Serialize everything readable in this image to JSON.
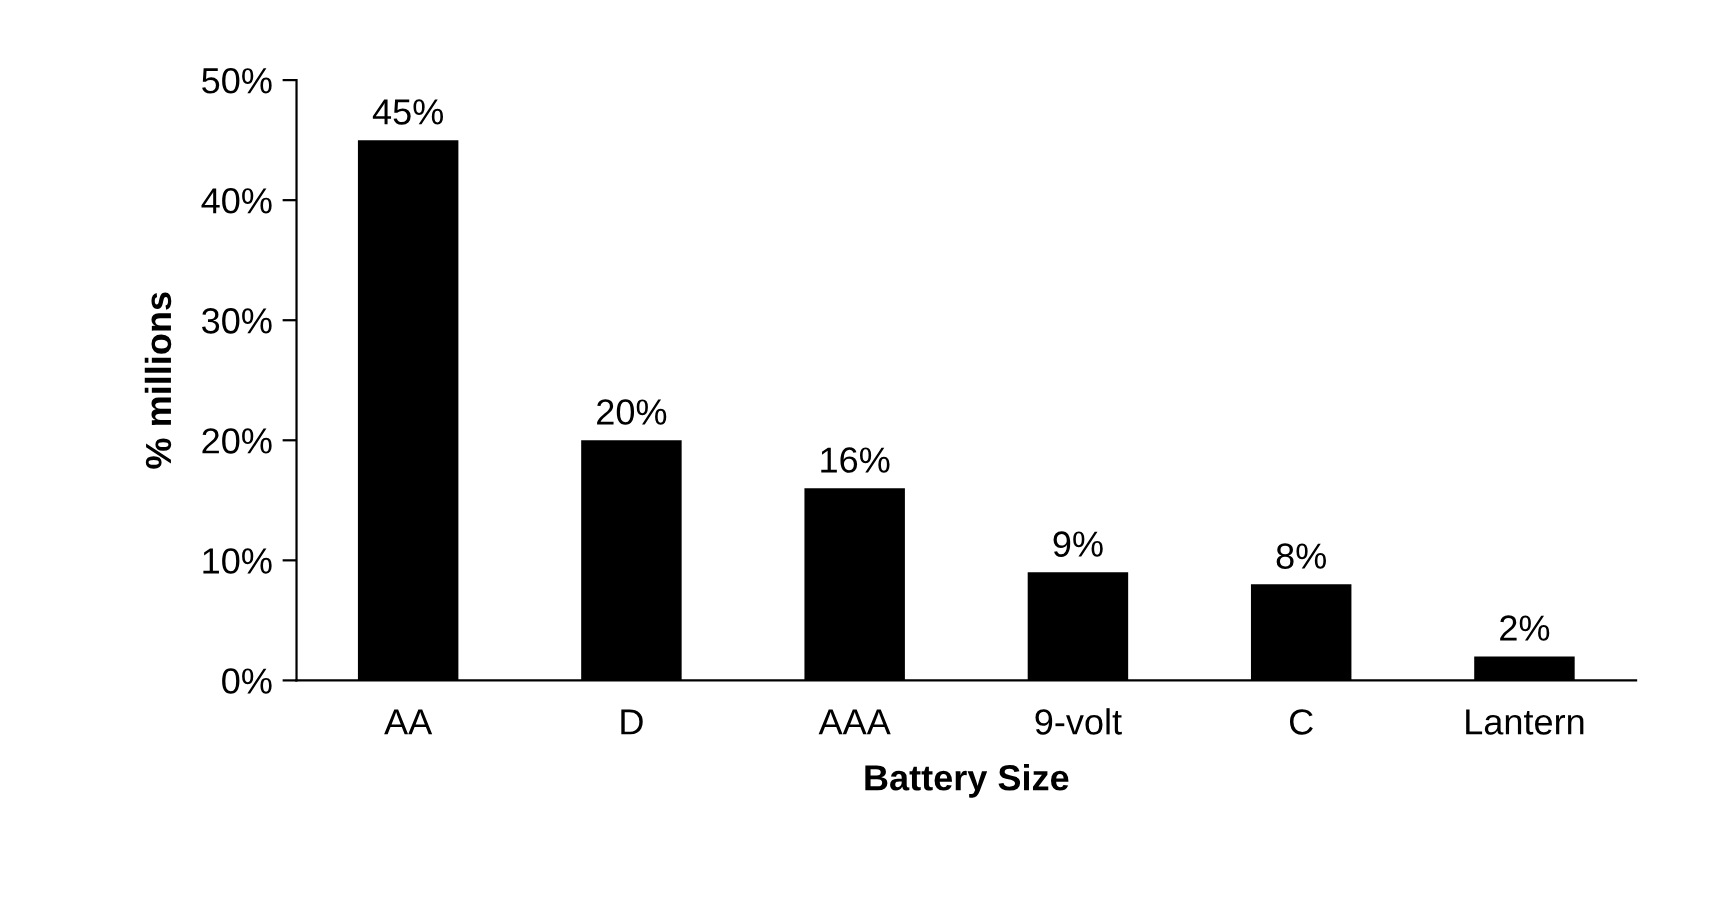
{
  "chart_data": {
    "type": "bar",
    "xlabel": "Battery Size",
    "ylabel": "% millions",
    "categories": [
      "AA",
      "D",
      "AAA",
      "9-volt",
      "C",
      "Lantern"
    ],
    "values": [
      45,
      20,
      16,
      9,
      8,
      2
    ],
    "value_labels": [
      "45%",
      "20%",
      "16%",
      "9%",
      "8%",
      "2%"
    ],
    "color": "#000000",
    "ylim": [
      0,
      50
    ],
    "yticks": [
      {
        "value": 0,
        "label": "0%"
      },
      {
        "value": 10,
        "label": "10%"
      },
      {
        "value": 20,
        "label": "20%"
      },
      {
        "value": 30,
        "label": "30%"
      },
      {
        "value": 40,
        "label": "40%"
      },
      {
        "value": 50,
        "label": "50%"
      }
    ],
    "grid": false
  }
}
